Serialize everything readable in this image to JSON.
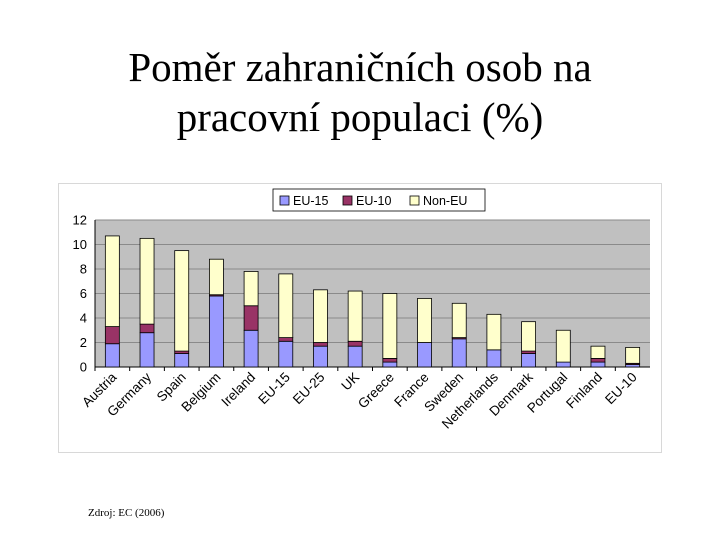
{
  "title_line1": "Poměr zahraničních osob na",
  "title_line2": "pracovní populaci (%)",
  "source": "Zdroj: EC (2006)",
  "colors": {
    "eu15": "#9999ff",
    "eu10": "#993366",
    "noneu": "#ffffcc",
    "plot_bg": "#c0c0c0"
  },
  "chart_data": {
    "type": "bar",
    "stacked": true,
    "categories": [
      "Austria",
      "Germany",
      "Spain",
      "Belgium",
      "Ireland",
      "EU-15",
      "EU-25",
      "UK",
      "Greece",
      "France",
      "Sweden",
      "Netherlands",
      "Denmark",
      "Portugal",
      "Finland",
      "EU-10"
    ],
    "series": [
      {
        "name": "EU-15",
        "values": [
          1.9,
          2.8,
          1.1,
          5.8,
          3.0,
          2.1,
          1.7,
          1.7,
          0.4,
          2.0,
          2.3,
          1.4,
          1.1,
          0.4,
          0.4,
          0.2
        ]
      },
      {
        "name": "EU-10",
        "values": [
          1.4,
          0.7,
          0.2,
          0.1,
          2.0,
          0.3,
          0.3,
          0.4,
          0.3,
          0.0,
          0.1,
          0.0,
          0.2,
          0.0,
          0.3,
          0.1
        ]
      },
      {
        "name": "Non-EU",
        "values": [
          7.4,
          7.0,
          8.2,
          2.9,
          2.8,
          5.2,
          4.3,
          4.1,
          5.3,
          3.6,
          2.8,
          2.9,
          2.4,
          2.6,
          1.0,
          1.3
        ]
      }
    ],
    "ylim": [
      0,
      12
    ],
    "yticks": [
      0,
      2,
      4,
      6,
      8,
      10,
      12
    ],
    "grid": true,
    "legend_position": "top-center"
  }
}
